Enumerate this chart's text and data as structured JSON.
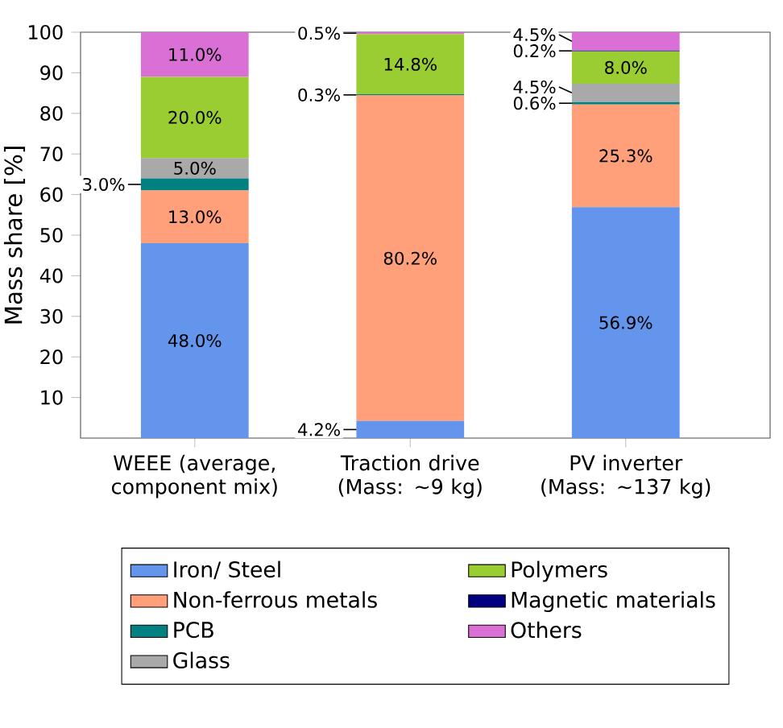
{
  "chart_data": {
    "type": "bar",
    "stacked": true,
    "ylabel": "Mass share [%]",
    "categories": [
      "WEEE (average, component mix)",
      "Traction drive (Mass: ~9 kg)",
      "PV inverter (Mass: ~137 kg)"
    ],
    "ylim": [
      0,
      100
    ],
    "yticks": [
      10,
      20,
      30,
      40,
      50,
      60,
      70,
      80,
      90,
      100
    ],
    "legend": "bottom",
    "series": [
      {
        "name": "Iron/ Steel",
        "color": "#6495ed",
        "values": [
          48.0,
          4.2,
          56.9
        ],
        "value_labels": [
          "48.0%",
          "4.2%",
          "56.9%"
        ]
      },
      {
        "name": "Non-ferrous metals",
        "color": "#ffa07a",
        "values": [
          13.0,
          80.2,
          25.3
        ],
        "value_labels": [
          "13.0%",
          "80.2%",
          "25.3%"
        ]
      },
      {
        "name": "PCB",
        "color": "#008080",
        "values": [
          3.0,
          0.3,
          0.6
        ],
        "value_labels": [
          "3.0%",
          "0.3%",
          "0.6%"
        ]
      },
      {
        "name": "Glass",
        "color": "#a9a9a9",
        "values": [
          5.0,
          0,
          4.5
        ],
        "value_labels": [
          "5.0%",
          null,
          "4.5%"
        ]
      },
      {
        "name": "Polymers",
        "color": "#9acd32",
        "values": [
          20.0,
          14.8,
          8.0
        ],
        "value_labels": [
          "20.0%",
          "14.8%",
          "8.0%"
        ]
      },
      {
        "name": "Magnetic materials",
        "color": "#000080",
        "values": [
          0,
          0,
          0.2
        ],
        "value_labels": [
          null,
          null,
          "0.2%"
        ]
      },
      {
        "name": "Others",
        "color": "#da70d6",
        "values": [
          11.0,
          0.5,
          4.5
        ],
        "value_labels": [
          "11.0%",
          "0.5%",
          "4.5%"
        ]
      }
    ]
  }
}
